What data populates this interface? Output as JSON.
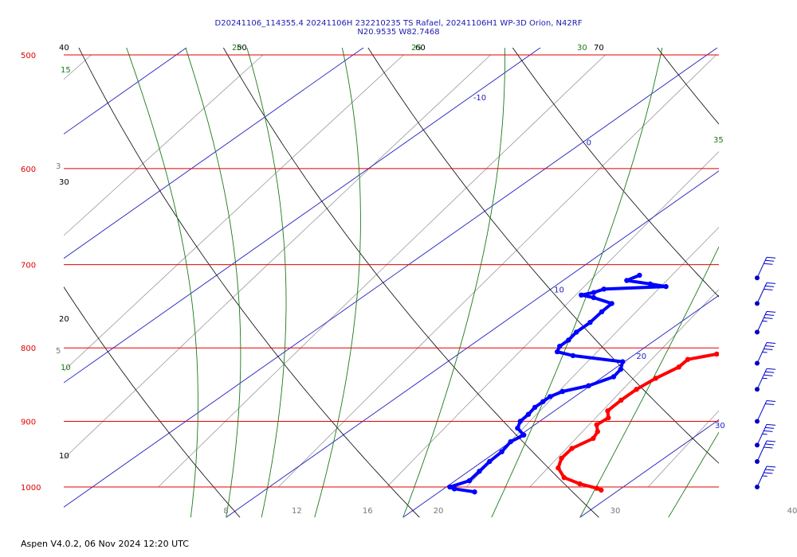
{
  "chart_data": {
    "type": "skew-t",
    "title": "D20241106_114355.4 20241106H 232210235 TS Rafael, 20241106H1 WP-3D Orion, N42RF",
    "subtitle": "N20.9535 W82.7468",
    "pressure_labels": [
      "500",
      "600",
      "700",
      "800",
      "900",
      "1000"
    ],
    "pressure_levels": [
      500,
      600,
      700,
      800,
      900,
      1000
    ],
    "temperature_ticks": [
      "8",
      "12",
      "16",
      "20",
      "30",
      "40"
    ],
    "temperature_tick_values": [
      8,
      12,
      16,
      20,
      30,
      40
    ],
    "isotherm_labels": [
      "-10",
      "0",
      "10",
      "20",
      "30"
    ],
    "mixing_ratio_labels": [
      "3",
      "5"
    ],
    "dry_adiabat_labels": [
      "40",
      "30",
      "20",
      "10"
    ],
    "dry_adiabat_top_labels": [
      "50",
      "60",
      "70"
    ],
    "moist_adiabat_labels": [
      "15",
      "10",
      "20",
      "25",
      "30",
      "35"
    ],
    "series": [
      {
        "name": "temperature",
        "color": "#ff0000",
        "p": [
          1005,
          1002,
          995,
          985,
          970,
          955,
          940,
          925,
          915,
          905,
          895,
          885,
          870,
          855,
          840,
          825,
          815,
          808,
          800,
          790,
          775,
          765,
          755,
          740,
          725,
          715,
          705
        ],
        "t": [
          29.0,
          28.6,
          27.3,
          25.9,
          24.8,
          24.2,
          24.0,
          24.4,
          24.1,
          23.5,
          23.6,
          23.0,
          22.9,
          22.9,
          23.1,
          23.5,
          23.4,
          24.6,
          26.6,
          26.3,
          24.8,
          24.0,
          23.5,
          23.5,
          23.5,
          23.1,
          23.2
        ]
      },
      {
        "name": "dewpoint",
        "color": "#0000ff",
        "p": [
          1008,
          1003,
          1000,
          990,
          975,
          960,
          945,
          930,
          920,
          910,
          900,
          890,
          880,
          872,
          865,
          858,
          850,
          838,
          828,
          818,
          810,
          805,
          798,
          790,
          780,
          768,
          755,
          745,
          738,
          735,
          732,
          728,
          725,
          722,
          718,
          712
        ],
        "t": [
          22.0,
          20.6,
          20.2,
          20.8,
          20.6,
          20.4,
          20.3,
          20.0,
          20.2,
          19.3,
          18.9,
          18.8,
          18.6,
          18.6,
          18.6,
          18.9,
          19.9,
          20.6,
          20.4,
          19.9,
          16.6,
          15.4,
          15.1,
          15.1,
          14.9,
          14.9,
          14.7,
          14.6,
          13.1,
          12.2,
          12.7,
          13.0,
          16.3,
          15.2,
          13.6,
          13.9
        ]
      }
    ],
    "wind_barbs": {
      "color": "#0000cc",
      "items": [
        {
          "p": 1000,
          "knots": 25
        },
        {
          "p": 960,
          "knots": 30
        },
        {
          "p": 935,
          "knots": 25
        },
        {
          "p": 900,
          "knots": 20
        },
        {
          "p": 855,
          "knots": 25
        },
        {
          "p": 820,
          "knots": 25
        },
        {
          "p": 780,
          "knots": 25
        },
        {
          "p": 745,
          "knots": 30
        },
        {
          "p": 715,
          "knots": 30
        }
      ]
    },
    "grid": true
  },
  "colors": {
    "isobar": "#e00000",
    "isotherm": "#2020c0",
    "dry_adiabat": "#000000",
    "moist_adiabat": "#1a7a1a",
    "mixing_ratio": "#9a9a9a",
    "title": "#1a1ab0"
  },
  "footer": "Aspen V4.0.2, 06 Nov 2024 12:20 UTC"
}
